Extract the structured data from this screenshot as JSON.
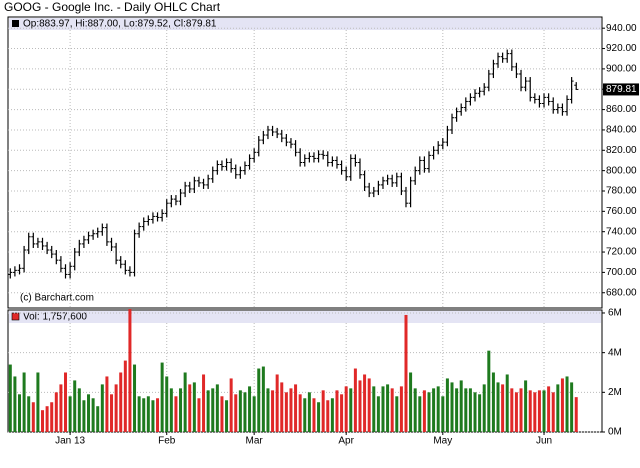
{
  "chart_data": {
    "type": "ohlc",
    "title": "GOOG - Google Inc. - Daily OHLC Chart",
    "info_label": "Op:883.97, Hi:887.00, Lo:879.52, Cl:879.81",
    "copyright": "(c) Barchart.com",
    "price_color": "#000000",
    "grid": true,
    "xlim": [
      -0.5,
      128.6
    ],
    "xticks": [
      {
        "value": 13,
        "label": "Jan 13"
      },
      {
        "value": 34,
        "label": "Feb"
      },
      {
        "value": 53,
        "label": "Mar"
      },
      {
        "value": 73,
        "label": "Apr"
      },
      {
        "value": 94,
        "label": "May"
      },
      {
        "value": 116,
        "label": "Jun"
      }
    ],
    "ylim": [
      665,
      951
    ],
    "yticks": [
      {
        "value": 680,
        "label": "680.00"
      },
      {
        "value": 700,
        "label": "700.00"
      },
      {
        "value": 720,
        "label": "720.00"
      },
      {
        "value": 740,
        "label": "740.00"
      },
      {
        "value": 760,
        "label": "760.00"
      },
      {
        "value": 780,
        "label": "780.00"
      },
      {
        "value": 800,
        "label": "800.00"
      },
      {
        "value": 820,
        "label": "820.00"
      },
      {
        "value": 840,
        "label": "840.00"
      },
      {
        "value": 860,
        "label": "860.00"
      },
      {
        "value": 880,
        "label": "880.00"
      },
      {
        "value": 900,
        "label": "900.00"
      },
      {
        "value": 920,
        "label": "920.00"
      },
      {
        "value": 940,
        "label": "940.00"
      }
    ],
    "open": [
      698,
      700,
      702,
      704,
      722,
      735,
      728,
      730,
      726,
      722,
      718,
      712,
      704,
      698,
      706,
      720,
      728,
      732,
      736,
      738,
      740,
      744,
      730,
      725,
      712,
      708,
      702,
      700,
      738,
      745,
      750,
      752,
      755,
      754,
      758,
      768,
      772,
      770,
      778,
      785,
      782,
      790,
      788,
      786,
      792,
      800,
      806,
      804,
      808,
      802,
      796,
      800,
      805,
      812,
      818,
      830,
      835,
      840,
      838,
      836,
      832,
      828,
      826,
      818,
      808,
      812,
      814,
      812,
      816,
      815,
      808,
      810,
      806,
      800,
      794,
      812,
      808,
      796,
      784,
      778,
      780,
      786,
      790,
      792,
      788,
      794,
      780,
      768,
      790,
      800,
      810,
      802,
      815,
      820,
      825,
      828,
      840,
      852,
      858,
      862,
      868,
      872,
      876,
      878,
      882,
      895,
      905,
      912,
      910,
      915,
      902,
      895,
      882,
      888,
      872,
      870,
      866,
      872,
      868,
      860,
      862,
      858,
      870,
      883.97
    ],
    "high": [
      704,
      706,
      708,
      726,
      739,
      739,
      734,
      734,
      730,
      726,
      722,
      716,
      708,
      710,
      724,
      732,
      736,
      740,
      742,
      744,
      748,
      748,
      734,
      729,
      716,
      712,
      706,
      742,
      749,
      754,
      756,
      759,
      759,
      762,
      772,
      776,
      776,
      782,
      789,
      789,
      794,
      794,
      792,
      796,
      804,
      810,
      810,
      812,
      812,
      806,
      804,
      809,
      816,
      822,
      834,
      839,
      844,
      844,
      842,
      840,
      836,
      832,
      830,
      822,
      816,
      818,
      818,
      820,
      820,
      819,
      814,
      814,
      810,
      804,
      816,
      816,
      812,
      800,
      788,
      784,
      790,
      794,
      796,
      796,
      798,
      798,
      784,
      794,
      804,
      814,
      814,
      819,
      824,
      829,
      832,
      844,
      856,
      862,
      866,
      872,
      876,
      880,
      882,
      886,
      899,
      909,
      916,
      916,
      919,
      919,
      906,
      899,
      892,
      892,
      876,
      874,
      876,
      876,
      872,
      866,
      866,
      874,
      892,
      887
    ],
    "low": [
      694,
      696,
      698,
      700,
      718,
      724,
      724,
      722,
      718,
      714,
      708,
      700,
      694,
      694,
      702,
      716,
      724,
      728,
      732,
      734,
      736,
      726,
      721,
      708,
      704,
      698,
      696,
      696,
      734,
      741,
      746,
      748,
      750,
      750,
      754,
      764,
      766,
      766,
      774,
      778,
      778,
      784,
      782,
      782,
      788,
      796,
      800,
      800,
      798,
      792,
      792,
      796,
      801,
      808,
      814,
      826,
      831,
      834,
      832,
      828,
      824,
      822,
      814,
      804,
      804,
      808,
      808,
      808,
      811,
      804,
      804,
      802,
      796,
      790,
      790,
      804,
      792,
      780,
      774,
      774,
      776,
      782,
      786,
      784,
      784,
      776,
      764,
      764,
      786,
      796,
      798,
      798,
      811,
      816,
      821,
      824,
      836,
      848,
      854,
      858,
      864,
      868,
      872,
      874,
      878,
      891,
      901,
      906,
      906,
      898,
      891,
      878,
      878,
      868,
      866,
      862,
      862,
      864,
      856,
      856,
      854,
      854,
      866,
      879.52
    ],
    "close": [
      700,
      702,
      704,
      722,
      735,
      728,
      730,
      726,
      722,
      718,
      712,
      704,
      698,
      706,
      720,
      728,
      732,
      736,
      738,
      740,
      744,
      730,
      725,
      712,
      708,
      702,
      700,
      738,
      745,
      750,
      752,
      755,
      754,
      758,
      768,
      772,
      770,
      778,
      785,
      782,
      790,
      788,
      786,
      792,
      800,
      806,
      804,
      808,
      802,
      796,
      800,
      805,
      812,
      818,
      830,
      835,
      840,
      838,
      836,
      832,
      828,
      826,
      818,
      808,
      812,
      814,
      812,
      816,
      815,
      808,
      810,
      806,
      800,
      794,
      812,
      808,
      796,
      784,
      778,
      780,
      786,
      790,
      792,
      788,
      794,
      780,
      768,
      790,
      800,
      810,
      802,
      815,
      820,
      825,
      828,
      840,
      852,
      858,
      862,
      868,
      872,
      876,
      878,
      882,
      895,
      905,
      912,
      910,
      915,
      902,
      895,
      882,
      888,
      872,
      870,
      866,
      872,
      868,
      860,
      862,
      858,
      870,
      888,
      879.81
    ],
    "volume": {
      "label": "Vol: 1,757,600",
      "up_color": "#1e7a1e",
      "down_color": "#e02828",
      "ylim": [
        0,
        6150000
      ],
      "yticks": [
        {
          "value": 0,
          "label": "0M"
        },
        {
          "value": 2000000,
          "label": "2M"
        },
        {
          "value": 4000000,
          "label": "4M"
        },
        {
          "value": 6000000,
          "label": "6M"
        }
      ],
      "values": [
        3400000,
        2800000,
        1900000,
        3000000,
        1800000,
        1500000,
        3000000,
        1100000,
        1300000,
        1500000,
        2000000,
        2400000,
        3000000,
        1800000,
        2600000,
        2200000,
        1600000,
        1900000,
        1700000,
        1300000,
        2400000,
        2800000,
        1900000,
        2400000,
        3000000,
        3600000,
        6200000,
        3400000,
        1800000,
        1700000,
        1800000,
        1600000,
        1700000,
        3500000,
        2800000,
        2200000,
        1800000,
        2200000,
        3000000,
        2400000,
        2500000,
        1700000,
        2900000,
        2100000,
        2200000,
        2400000,
        1800000,
        1600000,
        2700000,
        1900000,
        2100000,
        2000000,
        2300000,
        1800000,
        3200000,
        3300000,
        2200000,
        2100000,
        2900000,
        2500000,
        2000000,
        2200000,
        2400000,
        1900000,
        1700000,
        2000000,
        1700000,
        1500000,
        2100000,
        1600000,
        1700000,
        2100000,
        1900000,
        2300000,
        2200000,
        3200000,
        2600000,
        2900000,
        2700000,
        2300000,
        1800000,
        2300000,
        2400000,
        2200000,
        1800000,
        2300000,
        5900000,
        3000000,
        2200000,
        1800000,
        2100000,
        2000000,
        2200000,
        2300000,
        1800000,
        2700000,
        2500000,
        2200000,
        2600000,
        2200000,
        2200000,
        2000000,
        1900000,
        2400000,
        4100000,
        3000000,
        2500000,
        2400000,
        2900000,
        2200000,
        2000000,
        2200000,
        2600000,
        2100000,
        2000000,
        2100000,
        2100000,
        2300000,
        2000000,
        2400000,
        2700000,
        2800000,
        2500000,
        1757600
      ]
    }
  }
}
